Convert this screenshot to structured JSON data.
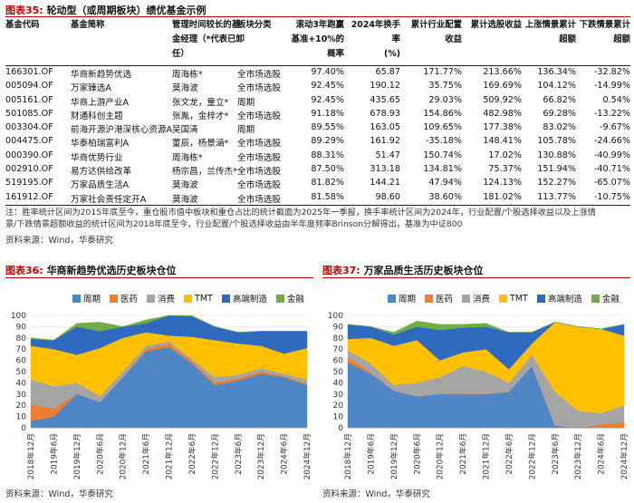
{
  "table_caption": {
    "tag": "图表35:",
    "title": "轮动型（或周期板块）绩优基金示例"
  },
  "table": {
    "headers": {
      "code": "基金代码",
      "name": "基金简称",
      "manager": [
        "管理时间较长的基",
        "金经理（*代表已卸",
        "任）"
      ],
      "sector": "板块分类",
      "prob": [
        "滚动3年跑赢",
        "基准+10%的",
        "概率"
      ],
      "turnover": [
        "2024年换手率",
        "(%)"
      ],
      "industry": [
        "累计行业配置",
        "收益"
      ],
      "stock": "累计选股收益",
      "up": [
        "上涨情景累计",
        "超额"
      ],
      "down": [
        "下跌情景累计",
        "超额"
      ]
    },
    "rows": [
      {
        "code": "166301.OF",
        "name": "华商新趋势优选",
        "manager": "周海栋*",
        "sector": "全市场选股",
        "prob": "97.40%",
        "turnover": "65.87",
        "industry": "171.77%",
        "stock": "213.66%",
        "up": "136.34%",
        "down": "-32.82%"
      },
      {
        "code": "005094.OF",
        "name": "万家臻选A",
        "manager": "莫海波",
        "sector": "全市场选股",
        "prob": "92.45%",
        "turnover": "190.12",
        "industry": "35.75%",
        "stock": "169.69%",
        "up": "104.12%",
        "down": "-14.99%"
      },
      {
        "code": "005161.OF",
        "name": "华商上游产业A",
        "manager": "张文龙，童立*",
        "sector": "周期",
        "prob": "92.45%",
        "turnover": "435.65",
        "industry": "29.03%",
        "stock": "509.92%",
        "up": "66.82%",
        "down": "0.54%"
      },
      {
        "code": "501085.OF",
        "name": "财通科创主题",
        "manager": "张胤，金梓才*",
        "sector": "全市场选股",
        "prob": "91.18%",
        "turnover": "678.93",
        "industry": "154.86%",
        "stock": "482.98%",
        "up": "69.28%",
        "down": "-13.22%"
      },
      {
        "code": "003304.OF",
        "name": "前海开源沪港深核心资源A",
        "manager": "吴国清",
        "sector": "周期",
        "prob": "89.55%",
        "turnover": "163.05",
        "industry": "109.65%",
        "stock": "177.38%",
        "up": "83.02%",
        "down": "-9.67%"
      },
      {
        "code": "004475.OF",
        "name": "华泰柏瑞富利A",
        "manager": "董辰，杨景涵*",
        "sector": "全市场选股",
        "prob": "89.29%",
        "turnover": "161.92",
        "industry": "-35.18%",
        "stock": "148.41%",
        "up": "105.78%",
        "down": "-24.66%"
      },
      {
        "code": "000390.OF",
        "name": "华商优势行业",
        "manager": "周海栋*",
        "sector": "全市场选股",
        "prob": "88.31%",
        "turnover": "51.47",
        "industry": "150.74%",
        "stock": "17.02%",
        "up": "130.88%",
        "down": "-40.99%"
      },
      {
        "code": "002910.OF",
        "name": "易方达供给改革",
        "manager": "杨宗昌，兰传杰*",
        "sector": "全市场选股",
        "prob": "87.50%",
        "turnover": "313.18",
        "industry": "134.81%",
        "stock": "75.37%",
        "up": "151.94%",
        "down": "-40.71%"
      },
      {
        "code": "519195.OF",
        "name": "万家品质生活A",
        "manager": "莫海波",
        "sector": "全市场选股",
        "prob": "81.82%",
        "turnover": "144.21",
        "industry": "47.94%",
        "stock": "124.13%",
        "up": "152.27%",
        "down": "-65.07%"
      },
      {
        "code": "161912.OF",
        "name": "万家社会责任定开A",
        "manager": "莫海波",
        "sector": "全市场选股",
        "prob": "81.58%",
        "turnover": "98.60",
        "industry": "38.60%",
        "stock": "181.02%",
        "up": "113.77%",
        "down": "-10.75%"
      }
    ]
  },
  "note_lines": [
    "注：胜率统计区间为2015年底至今，重仓股市值中板块和重仓占比的统计截面为2025年一季报，换手率统计区间为2024年，行业配置/个股选择收益以及上涨情",
    "景/下跌情景超额收益的统计区间为2018年底至今，行业配置/个股选择收益由半年度频率Brinson分解得出，基准为中证800"
  ],
  "source_label": "资料来源：Wind，华泰研究",
  "legend": [
    {
      "name": "周期",
      "color": "#4f86c6"
    },
    {
      "name": "医药",
      "color": "#ed7d31"
    },
    {
      "name": "消费",
      "color": "#a5a5a5"
    },
    {
      "name": "TMT",
      "color": "#ffc000"
    },
    {
      "name": "高端制造",
      "color": "#2e6bbf"
    },
    {
      "name": "金融",
      "color": "#70ad47"
    }
  ],
  "chart_data": [
    {
      "type": "area",
      "stacked": true,
      "tag": "图表36:",
      "title": "华商新趋势优选历史板块仓位",
      "ylim": [
        0,
        100
      ],
      "yticks": [
        0,
        10,
        20,
        30,
        40,
        50,
        60,
        70,
        80,
        90,
        100
      ],
      "x": [
        "2018年12月",
        "2019年6月",
        "2019年12月",
        "2020年6月",
        "2020年12月",
        "2021年6月",
        "2021年12月",
        "2022年6月",
        "2022年12月",
        "2023年6月",
        "2023年12月",
        "2024年6月",
        "2024年12月"
      ],
      "series": [
        {
          "name": "周期",
          "values": [
            6,
            10,
            30,
            23,
            45,
            68,
            72,
            57,
            38,
            42,
            48,
            45,
            38
          ]
        },
        {
          "name": "医药",
          "values": [
            15,
            7,
            0,
            0,
            0,
            2,
            3,
            2,
            2,
            2,
            2,
            1,
            1
          ]
        },
        {
          "name": "消费",
          "values": [
            22,
            20,
            10,
            5,
            5,
            3,
            2,
            2,
            5,
            3,
            3,
            2,
            4
          ]
        },
        {
          "name": "TMT",
          "values": [
            30,
            33,
            25,
            43,
            30,
            12,
            5,
            20,
            33,
            28,
            20,
            18,
            28
          ]
        },
        {
          "name": "高端制造",
          "values": [
            6,
            8,
            25,
            15,
            10,
            8,
            18,
            18,
            12,
            10,
            13,
            20,
            15
          ]
        },
        {
          "name": "金融",
          "values": [
            1,
            0,
            3,
            8,
            0,
            3,
            0,
            1,
            0,
            0,
            0,
            0,
            0
          ]
        }
      ]
    },
    {
      "type": "area",
      "stacked": true,
      "tag": "图表37:",
      "title": "万家品质生活历史板块仓位",
      "ylim": [
        0,
        100
      ],
      "yticks": [
        0,
        10,
        20,
        30,
        40,
        50,
        60,
        70,
        80,
        90,
        100
      ],
      "x": [
        "2018年12月",
        "2019年6月",
        "2019年12月",
        "2020年6月",
        "2020年12月",
        "2021年6月",
        "2021年12月",
        "2022年6月",
        "2022年12月",
        "2023年6月",
        "2023年12月",
        "2024年6月",
        "2024年12月"
      ],
      "series": [
        {
          "name": "周期",
          "values": [
            58,
            48,
            33,
            28,
            30,
            30,
            30,
            32,
            55,
            2,
            0,
            0,
            0
          ]
        },
        {
          "name": "医药",
          "values": [
            5,
            1,
            0,
            0,
            0,
            0,
            0,
            0,
            0,
            0,
            0,
            3,
            5
          ]
        },
        {
          "name": "消费",
          "values": [
            6,
            8,
            5,
            12,
            15,
            25,
            20,
            8,
            10,
            30,
            15,
            10,
            15
          ]
        },
        {
          "name": "TMT",
          "values": [
            10,
            23,
            35,
            38,
            15,
            12,
            20,
            12,
            10,
            62,
            75,
            75,
            62
          ]
        },
        {
          "name": "高端制造",
          "values": [
            13,
            10,
            10,
            12,
            27,
            22,
            20,
            33,
            10,
            0,
            0,
            0,
            10
          ]
        },
        {
          "name": "金融",
          "values": [
            0,
            0,
            2,
            5,
            5,
            3,
            3,
            0,
            0,
            0,
            0,
            0,
            0
          ]
        }
      ]
    }
  ]
}
